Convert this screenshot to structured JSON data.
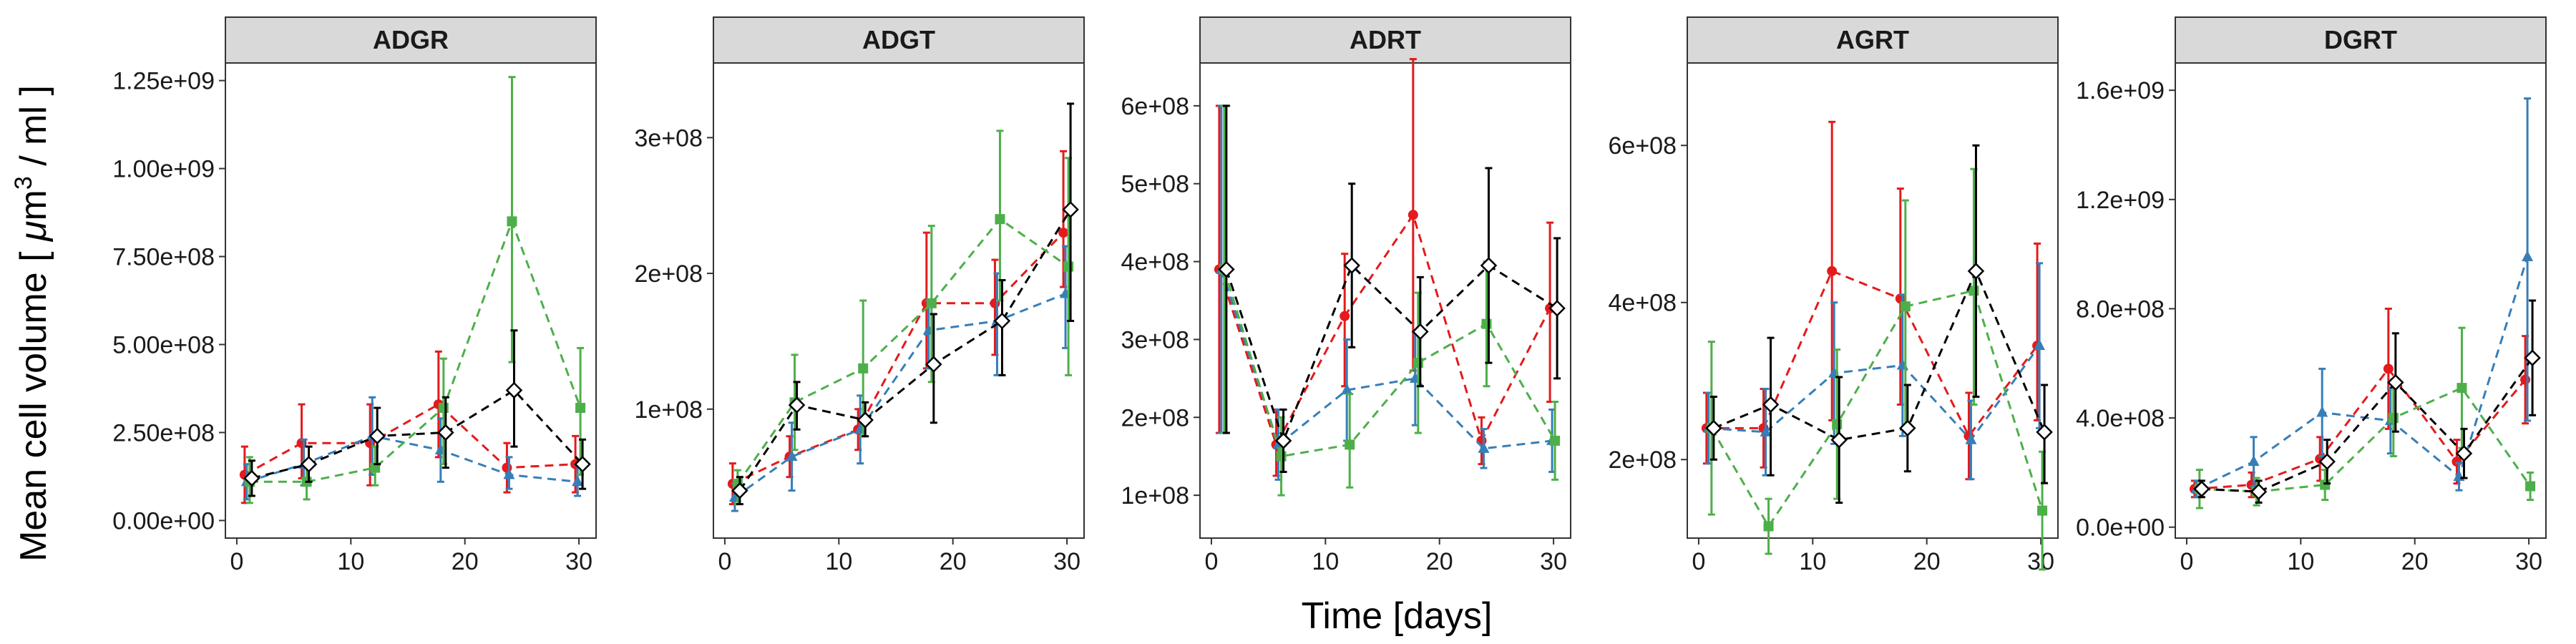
{
  "chart_data": {
    "type": "line",
    "xlabel": "Time [days]",
    "ylabel_parts": [
      "Mean cell volume [ ",
      "μ",
      "m",
      "3",
      " / ml ]"
    ],
    "series_styles": [
      {
        "color": "#e41a1c",
        "marker": "circle"
      },
      {
        "color": "#377eb8",
        "marker": "triangle"
      },
      {
        "color": "#4daf4a",
        "marker": "square"
      },
      {
        "color": "#000000",
        "marker": "diamond"
      }
    ],
    "x": [
      1,
      6,
      12,
      18,
      24,
      30
    ],
    "xlim": [
      -1,
      31.5
    ],
    "x_ticks": [
      0,
      10,
      20,
      30
    ],
    "grid": false,
    "panels": [
      {
        "title": "ADGR",
        "ylim": [
          -50000000.0,
          1300000000.0
        ],
        "y_ticks": [
          0,
          250000000.0,
          500000000.0,
          750000000.0,
          1000000000.0,
          1250000000.0
        ],
        "y_tick_labels": [
          "0.00e+00",
          "2.50e+08",
          "5.00e+08",
          "7.50e+08",
          "1.00e+09",
          "1.25e+09"
        ],
        "series": [
          {
            "values": [
              130000000.0,
              220000000.0,
              220000000.0,
              330000000.0,
              150000000.0,
              160000000.0
            ],
            "err_low": [
              50000000.0,
              120000000.0,
              100000000.0,
              180000000.0,
              80000000.0,
              80000000.0
            ],
            "err_high": [
              210000000.0,
              330000000.0,
              330000000.0,
              480000000.0,
              220000000.0,
              240000000.0
            ]
          },
          {
            "values": [
              110000000.0,
              160000000.0,
              240000000.0,
              200000000.0,
              130000000.0,
              110000000.0
            ],
            "err_low": [
              60000000.0,
              100000000.0,
              130000000.0,
              110000000.0,
              90000000.0,
              70000000.0
            ],
            "err_high": [
              160000000.0,
              230000000.0,
              350000000.0,
              290000000.0,
              180000000.0,
              160000000.0
            ]
          },
          {
            "values": [
              110000000.0,
              110000000.0,
              150000000.0,
              320000000.0,
              850000000.0,
              320000000.0
            ],
            "err_low": [
              50000000.0,
              60000000.0,
              100000000.0,
              160000000.0,
              450000000.0,
              130000000.0
            ],
            "err_high": [
              180000000.0,
              170000000.0,
              210000000.0,
              460000000.0,
              1260000000.0,
              490000000.0
            ]
          },
          {
            "values": [
              120000000.0,
              160000000.0,
              240000000.0,
              250000000.0,
              370000000.0,
              160000000.0
            ],
            "err_low": [
              70000000.0,
              110000000.0,
              160000000.0,
              150000000.0,
              210000000.0,
              90000000.0
            ],
            "err_high": [
              170000000.0,
              210000000.0,
              320000000.0,
              350000000.0,
              540000000.0,
              230000000.0
            ]
          }
        ]
      },
      {
        "title": "ADGT",
        "ylim": [
          5000000.0,
          355000000.0
        ],
        "y_ticks": [
          100000000.0,
          200000000.0,
          300000000.0
        ],
        "y_tick_labels": [
          "1e+08",
          "2e+08",
          "3e+08"
        ],
        "series": [
          {
            "values": [
              45000000.0,
              65000000.0,
              85000000.0,
              178000000.0,
              178000000.0,
              230000000.0
            ],
            "err_low": [
              30000000.0,
              50000000.0,
              70000000.0,
              130000000.0,
              140000000.0,
              190000000.0
            ],
            "err_high": [
              60000000.0,
              80000000.0,
              100000000.0,
              230000000.0,
              210000000.0,
              290000000.0
            ]
          },
          {
            "values": [
              35000000.0,
              65000000.0,
              85000000.0,
              158000000.0,
              165000000.0,
              185000000.0
            ],
            "err_low": [
              25000000.0,
              40000000.0,
              60000000.0,
              130000000.0,
              125000000.0,
              145000000.0
            ],
            "err_high": [
              45000000.0,
              90000000.0,
              110000000.0,
              180000000.0,
              200000000.0,
              220000000.0
            ]
          },
          {
            "values": [
              45000000.0,
              105000000.0,
              130000000.0,
              178000000.0,
              240000000.0,
              205000000.0
            ],
            "err_low": [
              30000000.0,
              70000000.0,
              80000000.0,
              120000000.0,
              180000000.0,
              125000000.0
            ],
            "err_high": [
              55000000.0,
              140000000.0,
              180000000.0,
              235000000.0,
              305000000.0,
              285000000.0
            ]
          },
          {
            "values": [
              40000000.0,
              103000000.0,
              92000000.0,
              133000000.0,
              165000000.0,
              247000000.0
            ],
            "err_low": [
              30000000.0,
              85000000.0,
              80000000.0,
              90000000.0,
              125000000.0,
              165000000.0
            ],
            "err_high": [
              50000000.0,
              120000000.0,
              105000000.0,
              170000000.0,
              195000000.0,
              325000000.0
            ]
          }
        ]
      },
      {
        "title": "ADRT",
        "ylim": [
          45000000.0,
          655000000.0
        ],
        "y_ticks": [
          100000000.0,
          200000000.0,
          300000000.0,
          400000000.0,
          500000000.0,
          600000000.0
        ],
        "y_tick_labels": [
          "1e+08",
          "2e+08",
          "3e+08",
          "4e+08",
          "5e+08",
          "6e+08"
        ],
        "series": [
          {
            "values": [
              390000000.0,
              165000000.0,
              330000000.0,
              460000000.0,
              170000000.0,
              340000000.0
            ],
            "err_low": [
              180000000.0,
              125000000.0,
              240000000.0,
              260000000.0,
              140000000.0,
              220000000.0
            ],
            "err_high": [
              600000000.0,
              210000000.0,
              410000000.0,
              660000000.0,
              200000000.0,
              450000000.0
            ]
          },
          {
            "values": [
              390000000.0,
              165000000.0,
              235000000.0,
              250000000.0,
              160000000.0,
              170000000.0
            ],
            "err_low": [
              180000000.0,
              120000000.0,
              170000000.0,
              190000000.0,
              135000000.0,
              130000000.0
            ],
            "err_high": [
              600000000.0,
              210000000.0,
              300000000.0,
              310000000.0,
              185000000.0,
              210000000.0
            ]
          },
          {
            "values": [
              390000000.0,
              150000000.0,
              165000000.0,
              270000000.0,
              320000000.0,
              170000000.0
            ],
            "err_low": [
              180000000.0,
              100000000.0,
              110000000.0,
              180000000.0,
              240000000.0,
              120000000.0
            ],
            "err_high": [
              600000000.0,
              200000000.0,
              230000000.0,
              360000000.0,
              400000000.0,
              220000000.0
            ]
          },
          {
            "values": [
              390000000.0,
              170000000.0,
              395000000.0,
              310000000.0,
              395000000.0,
              340000000.0
            ],
            "err_low": [
              180000000.0,
              130000000.0,
              290000000.0,
              240000000.0,
              270000000.0,
              250000000.0
            ],
            "err_high": [
              600000000.0,
              210000000.0,
              500000000.0,
              380000000.0,
              520000000.0,
              430000000.0
            ]
          }
        ]
      },
      {
        "title": "AGRT",
        "ylim": [
          100000000.0,
          705000000.0
        ],
        "y_ticks": [
          200000000.0,
          400000000.0,
          600000000.0
        ],
        "y_tick_labels": [
          "2e+08",
          "4e+08",
          "6e+08"
        ],
        "series": [
          {
            "values": [
              240000000.0,
              240000000.0,
              440000000.0,
              405000000.0,
              230000000.0,
              345000000.0
            ],
            "err_low": [
              195000000.0,
              190000000.0,
              250000000.0,
              270000000.0,
              175000000.0,
              250000000.0
            ],
            "err_high": [
              285000000.0,
              290000000.0,
              630000000.0,
              545000000.0,
              285000000.0,
              475000000.0
            ]
          },
          {
            "values": [
              240000000.0,
              235000000.0,
              310000000.0,
              320000000.0,
              225000000.0,
              345000000.0
            ],
            "err_low": [
              195000000.0,
              180000000.0,
              220000000.0,
              230000000.0,
              175000000.0,
              240000000.0
            ],
            "err_high": [
              285000000.0,
              290000000.0,
              400000000.0,
              410000000.0,
              275000000.0,
              450000000.0
            ]
          },
          {
            "values": [
              240000000.0,
              115000000.0,
              245000000.0,
              395000000.0,
              415000000.0,
              135000000.0
            ],
            "err_low": [
              130000000.0,
              80000000.0,
              150000000.0,
              240000000.0,
              270000000.0,
              60000000.0
            ],
            "err_high": [
              350000000.0,
              150000000.0,
              340000000.0,
              530000000.0,
              570000000.0,
              210000000.0
            ]
          },
          {
            "values": [
              240000000.0,
              270000000.0,
              225000000.0,
              240000000.0,
              440000000.0,
              235000000.0
            ],
            "err_low": [
              200000000.0,
              180000000.0,
              145000000.0,
              185000000.0,
              280000000.0,
              170000000.0
            ],
            "err_high": [
              280000000.0,
              355000000.0,
              305000000.0,
              295000000.0,
              600000000.0,
              295000000.0
            ]
          }
        ]
      },
      {
        "title": "DGRT",
        "ylim": [
          -40000000.0,
          1700000000.0
        ],
        "y_ticks": [
          0,
          400000000.0,
          800000000.0,
          1200000000.0,
          1600000000.0
        ],
        "y_tick_labels": [
          "0.0e+00",
          "4.0e+08",
          "8.0e+08",
          "1.2e+09",
          "1.6e+09"
        ],
        "series": [
          {
            "values": [
              140000000.0,
              155000000.0,
              250000000.0,
              580000000.0,
              240000000.0,
              540000000.0
            ],
            "err_low": [
              110000000.0,
              110000000.0,
              170000000.0,
              360000000.0,
              160000000.0,
              380000000.0
            ],
            "err_high": [
              170000000.0,
              200000000.0,
              330000000.0,
              800000000.0,
              320000000.0,
              700000000.0
            ]
          },
          {
            "values": [
              140000000.0,
              240000000.0,
              420000000.0,
              390000000.0,
              185000000.0,
              990000000.0
            ],
            "err_low": [
              110000000.0,
              150000000.0,
              260000000.0,
              270000000.0,
              135000000.0,
              390000000.0
            ],
            "err_high": [
              170000000.0,
              330000000.0,
              580000000.0,
              510000000.0,
              235000000.0,
              1570000000.0
            ]
          },
          {
            "values": [
              140000000.0,
              130000000.0,
              155000000.0,
              400000000.0,
              510000000.0,
              150000000.0
            ],
            "err_low": [
              70000000.0,
              80000000.0,
              100000000.0,
              260000000.0,
              290000000.0,
              100000000.0
            ],
            "err_high": [
              210000000.0,
              180000000.0,
              210000000.0,
              540000000.0,
              730000000.0,
              200000000.0
            ]
          },
          {
            "values": [
              140000000.0,
              130000000.0,
              240000000.0,
              530000000.0,
              270000000.0,
              620000000.0
            ],
            "err_low": [
              110000000.0,
              90000000.0,
              160000000.0,
              350000000.0,
              180000000.0,
              410000000.0
            ],
            "err_high": [
              170000000.0,
              170000000.0,
              320000000.0,
              710000000.0,
              360000000.0,
              830000000.0
            ]
          }
        ]
      }
    ]
  }
}
